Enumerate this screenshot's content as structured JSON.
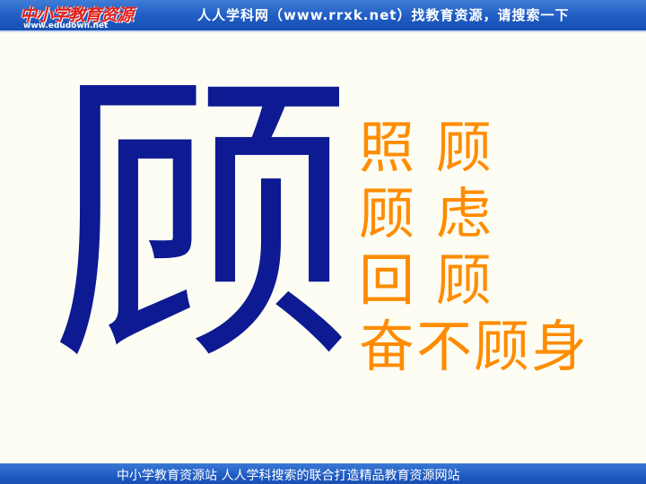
{
  "header": {
    "logo_text": "中小学教育资源",
    "logo_url": "www.edudown.net",
    "slogan": "人人学科网（www.rrxk.net）找教育资源，请搜索一下"
  },
  "main": {
    "big_character": "顾",
    "words": [
      "照 顾",
      "顾 虑",
      "回 顾",
      "奋不顾身"
    ]
  },
  "footer": {
    "text": "中小学教育资源站 人人学科搜索的联合打造精品教育资源网站"
  },
  "colors": {
    "big_character": "#0d1a92",
    "words": "#ff8c00",
    "bars": "#1f5cc4",
    "background": "#fdfdf4"
  }
}
